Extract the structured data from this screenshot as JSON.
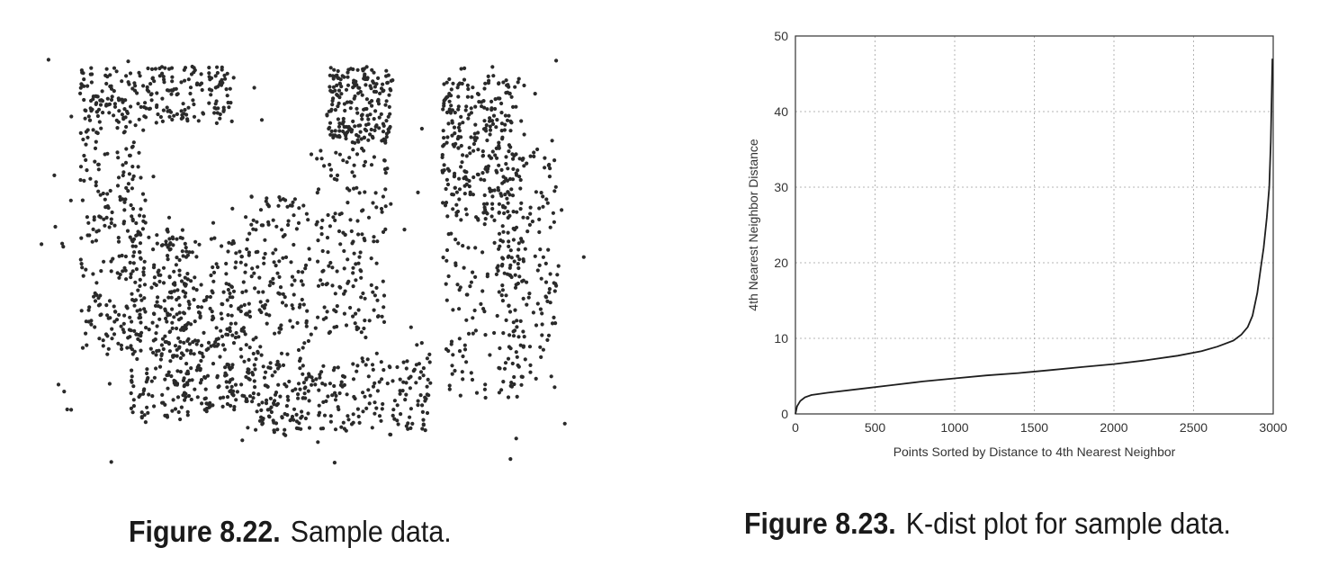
{
  "captions": {
    "left": {
      "number": "Figure 8.22.",
      "text": "Sample data."
    },
    "right": {
      "number": "Figure 8.23.",
      "text": "K-dist plot for sample data."
    }
  },
  "colors": {
    "ink": "#2a2a2a",
    "grid": "#b5b5b5",
    "axis": "#333333"
  },
  "chart_data": [
    {
      "type": "scatter",
      "title": "",
      "xlabel": "",
      "ylabel": "",
      "axes_visible": false,
      "description_of_clusters": "",
      "series": [
        {
          "name": "",
          "regions": [
            {
              "shape": "rect",
              "x": [
                0.08,
                0.2
              ],
              "y": [
                0.1,
                0.72
              ],
              "n": 230
            },
            {
              "shape": "rect",
              "x": [
                0.08,
                0.36
              ],
              "y": [
                0.02,
                0.16
              ],
              "n": 210
            },
            {
              "shape": "rect",
              "x": [
                0.17,
                0.28
              ],
              "y": [
                0.42,
                0.9
              ],
              "n": 230
            },
            {
              "shape": "rect",
              "x": [
                0.27,
                0.38
              ],
              "y": [
                0.55,
                0.9
              ],
              "n": 90
            },
            {
              "shape": "rect",
              "x": [
                0.38,
                0.5
              ],
              "y": [
                0.34,
                0.92
              ],
              "n": 210
            },
            {
              "shape": "rect",
              "x": [
                0.24,
                0.39
              ],
              "y": [
                0.44,
                0.86
              ],
              "n": 170
            },
            {
              "shape": "rect",
              "x": [
                0.4,
                0.72
              ],
              "y": [
                0.74,
                0.92
              ],
              "n": 200
            },
            {
              "shape": "rect",
              "x": [
                0.51,
                0.64
              ],
              "y": [
                0.2,
                0.68
              ],
              "n": 170
            },
            {
              "shape": "rect",
              "x": [
                0.53,
                0.65
              ],
              "y": [
                0.02,
                0.2
              ],
              "n": 200
            },
            {
              "shape": "rect",
              "x": [
                0.74,
                0.89
              ],
              "y": [
                0.02,
                0.84
              ],
              "n": 190
            },
            {
              "shape": "rect",
              "x": [
                0.74,
                0.87
              ],
              "y": [
                0.05,
                0.4
              ],
              "n": 200
            },
            {
              "shape": "rect",
              "x": [
                0.84,
                0.95
              ],
              "y": [
                0.22,
                0.82
              ],
              "n": 160
            },
            {
              "shape": "noise",
              "x": [
                0.0,
                1.0
              ],
              "y": [
                0.0,
                1.0
              ],
              "n": 110
            }
          ]
        }
      ]
    },
    {
      "type": "line",
      "title": "",
      "xlabel": "Points Sorted by Distance to 4th Nearest Neighbor",
      "ylabel": "4th Nearest Neighbor Distance",
      "xlim": [
        0,
        3000
      ],
      "ylim": [
        0,
        50
      ],
      "xticks": [
        0,
        500,
        1000,
        1500,
        2000,
        2500,
        3000
      ],
      "yticks": [
        0,
        10,
        20,
        30,
        40,
        50
      ],
      "grid": true,
      "series": [
        {
          "name": "",
          "x": [
            0,
            10,
            30,
            60,
            100,
            200,
            400,
            600,
            800,
            1000,
            1200,
            1400,
            1600,
            1800,
            2000,
            2200,
            2400,
            2550,
            2650,
            2750,
            2800,
            2840,
            2870,
            2900,
            2920,
            2940,
            2960,
            2975,
            2985,
            2995
          ],
          "y": [
            0.0,
            1.0,
            1.7,
            2.2,
            2.5,
            2.8,
            3.3,
            3.8,
            4.3,
            4.7,
            5.1,
            5.4,
            5.8,
            6.2,
            6.6,
            7.1,
            7.7,
            8.3,
            8.9,
            9.7,
            10.5,
            11.5,
            13.0,
            16.0,
            19.0,
            22.0,
            26.0,
            30.0,
            36.0,
            47.0
          ]
        }
      ]
    }
  ]
}
